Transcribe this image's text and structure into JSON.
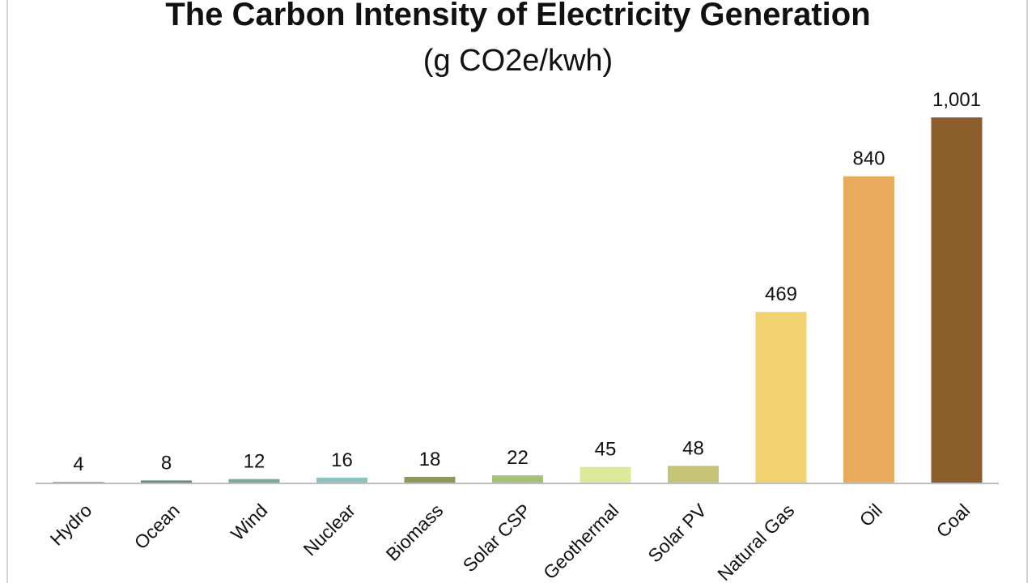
{
  "chart_data": {
    "type": "bar",
    "title": "The Carbon Intensity of Electricity Generation",
    "subtitle": "(g CO2e/kwh)",
    "categories": [
      "Hydro",
      "Ocean",
      "Wind",
      "Nuclear",
      "Biomass",
      "Solar CSP",
      "Geothermal",
      "Solar PV",
      "Natural Gas",
      "Oil",
      "Coal"
    ],
    "values": [
      4,
      8,
      12,
      16,
      18,
      22,
      45,
      48,
      469,
      840,
      1001
    ],
    "value_labels": [
      "4",
      "8",
      "12",
      "16",
      "18",
      "22",
      "45",
      "48",
      "469",
      "840",
      "1,001"
    ],
    "colors": [
      "#7a9a8a",
      "#5f8f80",
      "#7fa89a",
      "#8cc4c2",
      "#8a9a58",
      "#a8bf78",
      "#dde89a",
      "#c5c476",
      "#f2d270",
      "#e8aa5c",
      "#8b5e2b"
    ],
    "ylim": [
      0,
      1001
    ],
    "grid": false,
    "legend": "none",
    "xlabel": "",
    "ylabel": ""
  }
}
